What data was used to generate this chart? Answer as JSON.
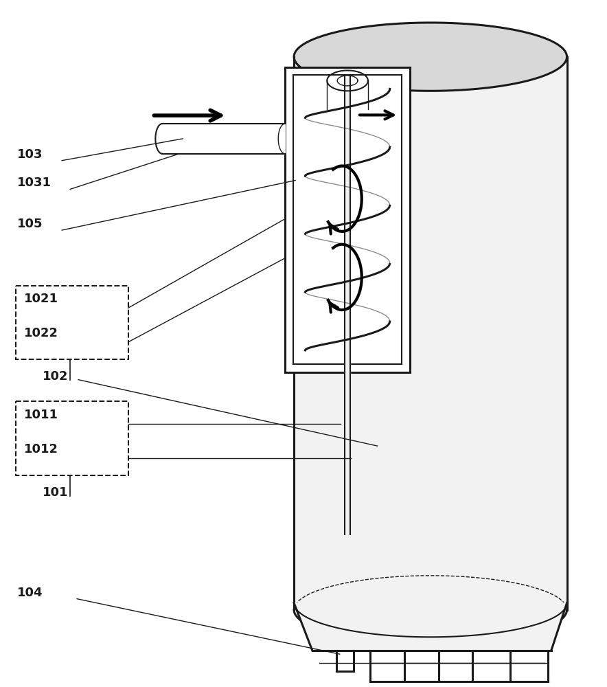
{
  "bg_color": "#ffffff",
  "line_color": "#1a1a1a",
  "gray_fill": "#d8d8d8",
  "light_fill": "#f2f2f2",
  "figsize": [
    8.84,
    10.0
  ],
  "dpi": 100,
  "label_fontsize": 13,
  "label_fontweight": "bold"
}
